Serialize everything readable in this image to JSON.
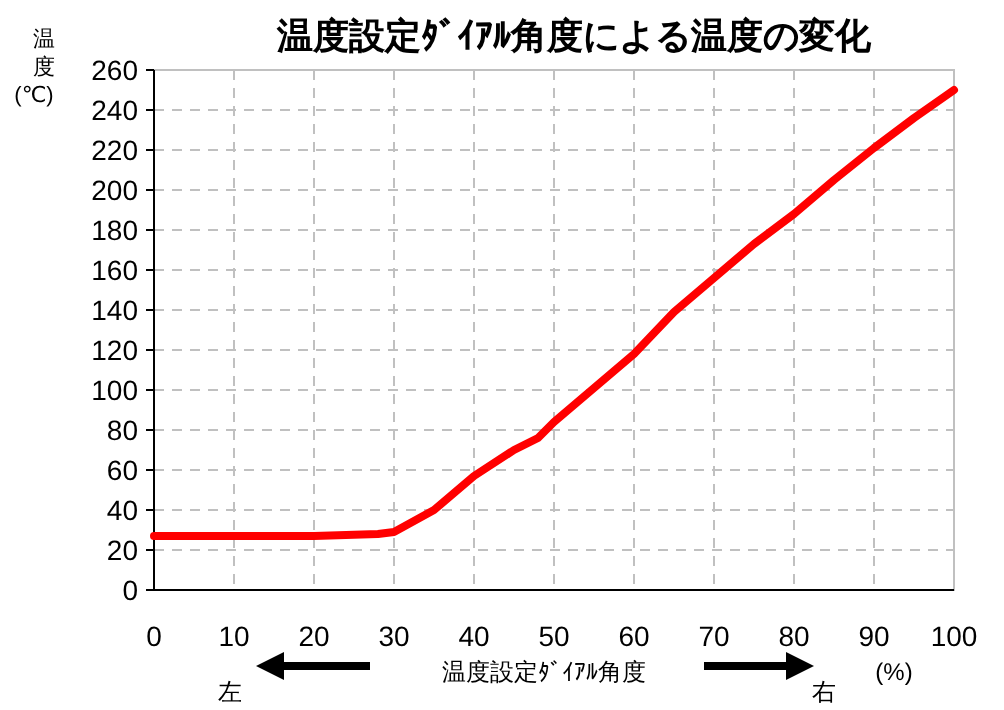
{
  "chart_data": {
    "type": "line",
    "title": "温度設定ﾀﾞｲｱﾙ角度による温度の変化",
    "xlabel": "温度設定ﾀﾞｲｱﾙ角度",
    "ylabel": "温度(℃)",
    "annotations": [
      "左",
      "右",
      "(%)"
    ],
    "x": [
      0,
      20,
      28,
      30,
      35,
      40,
      45,
      48,
      50,
      55,
      60,
      65,
      70,
      75,
      80,
      85,
      90,
      95,
      100
    ],
    "series": [
      {
        "color": "#ff0000",
        "values": [
          27,
          27,
          28,
          29,
          40,
          57,
          70,
          76,
          84,
          101,
          118,
          139,
          156,
          173,
          188,
          205,
          221,
          236,
          250
        ]
      }
    ],
    "xlim": [
      0,
      100
    ],
    "xticks": [
      0,
      10,
      20,
      30,
      40,
      50,
      60,
      70,
      80,
      90,
      100
    ],
    "ylim": [
      0,
      260
    ],
    "yticks": [
      0,
      20,
      40,
      60,
      80,
      100,
      120,
      140,
      160,
      180,
      200,
      220,
      240,
      260
    ],
    "grid": true,
    "marker": "none",
    "line_style": "solid"
  }
}
